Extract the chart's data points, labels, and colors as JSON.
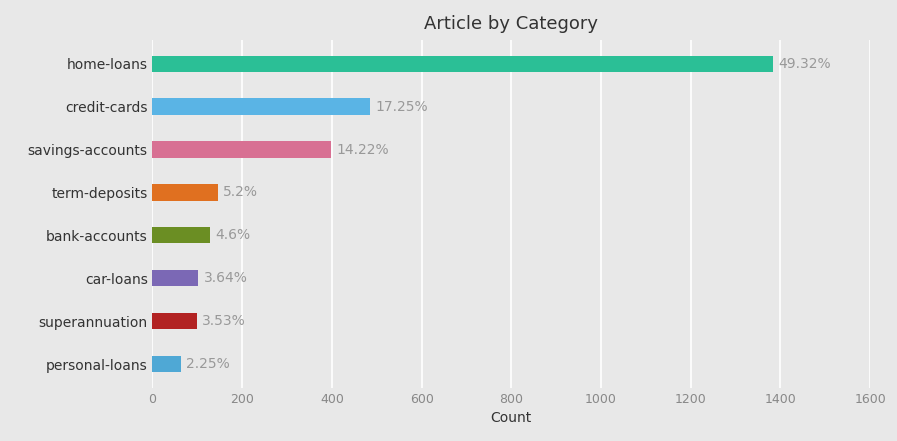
{
  "categories": [
    "personal-loans",
    "superannuation",
    "car-loans",
    "bank-accounts",
    "term-deposits",
    "savings-accounts",
    "credit-cards",
    "home-loans"
  ],
  "values": [
    63,
    99,
    102,
    129,
    146,
    399,
    484,
    1384
  ],
  "percentages": [
    "2.25%",
    "3.53%",
    "3.64%",
    "4.6%",
    "5.2%",
    "14.22%",
    "17.25%",
    "49.32%"
  ],
  "colors": [
    "#4fa8d5",
    "#b22222",
    "#7b68b5",
    "#6b8e23",
    "#e07020",
    "#d87093",
    "#5ab4e5",
    "#2bbf96"
  ],
  "title": "Article by Category",
  "xlabel": "Count",
  "xlim": [
    0,
    1600
  ],
  "xticks": [
    0,
    200,
    400,
    600,
    800,
    1000,
    1200,
    1400,
    1600
  ],
  "background_color": "#e8e8e8",
  "grid_color": "#ffffff",
  "pct_label_color": "#999999",
  "ytick_color": "#333333",
  "xtick_color": "#888888",
  "title_color": "#333333",
  "xlabel_color": "#333333",
  "title_fontsize": 13,
  "label_fontsize": 10,
  "tick_fontsize": 9,
  "pct_fontsize": 10,
  "bar_height": 0.38
}
